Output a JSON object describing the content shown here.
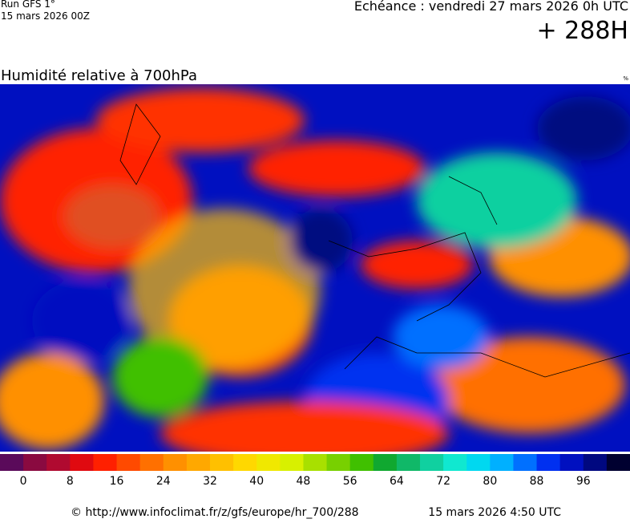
{
  "header": {
    "run": "Run GFS 1°",
    "run_date": "15 mars 2026 00Z",
    "forecast": "Echéance : vendredi 27 mars 2026 0h UTC",
    "lead": "+ 288H"
  },
  "map": {
    "title": "Humidité relative à 700hPa",
    "unit": "%"
  },
  "colorbar": {
    "colors": [
      "#5a0a5a",
      "#8a0a40",
      "#b00a30",
      "#e00a10",
      "#ff2000",
      "#ff4a00",
      "#ff7000",
      "#ff9000",
      "#ffa800",
      "#ffc000",
      "#ffd800",
      "#f0e800",
      "#d8f000",
      "#a8e000",
      "#78d000",
      "#40c000",
      "#10a830",
      "#10b868",
      "#10d0a0",
      "#10e8d0",
      "#00d8f0",
      "#00b0ff",
      "#0070ff",
      "#0030f0",
      "#0010c0",
      "#000880",
      "#000030"
    ],
    "ticks": [
      0,
      8,
      16,
      24,
      32,
      40,
      48,
      56,
      64,
      72,
      80,
      88,
      96
    ]
  },
  "footer": {
    "url": "© http://www.infoclimat.fr/z/gfs/europe/hr_700/288",
    "date": "15 mars 2026  4:50 UTC"
  }
}
